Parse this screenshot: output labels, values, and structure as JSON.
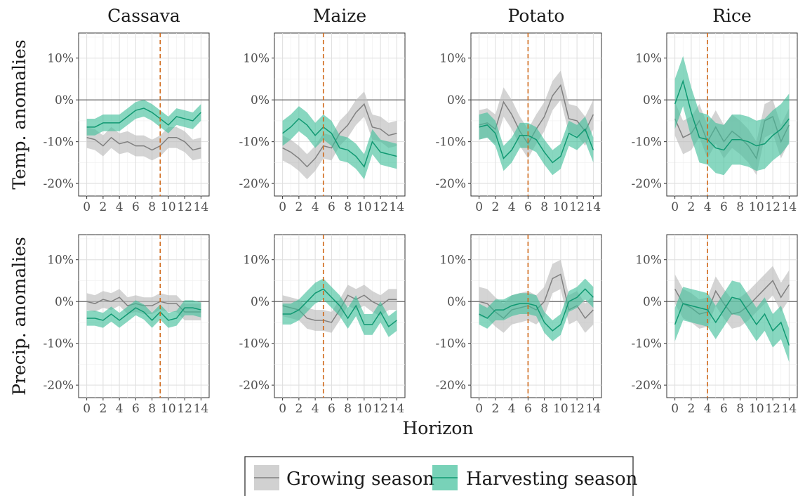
{
  "chart_data": {
    "type": "line",
    "xlabel": "Horizon",
    "x_ticks": [
      0,
      2,
      4,
      6,
      8,
      10,
      12,
      14
    ],
    "xlim": [
      -1,
      15
    ],
    "ylim": [
      -23,
      16
    ],
    "y_ticks": [
      10,
      0,
      -10,
      -20
    ],
    "y_tick_labels": [
      "10%",
      "0%",
      "-10%",
      "-20%"
    ],
    "rows": [
      {
        "label": "Temp. anomalies"
      },
      {
        "label": "Precip. anomalies"
      }
    ],
    "columns": [
      {
        "title": "Cassava",
        "vline": 9
      },
      {
        "title": "Maize",
        "vline": 5
      },
      {
        "title": "Potato",
        "vline": 6
      },
      {
        "title": "Rice",
        "vline": 4
      }
    ],
    "legend": {
      "position": "bottom",
      "entries": [
        {
          "label": "Growing season",
          "line_color": "#808080",
          "fill_color": "#bdbdbd"
        },
        {
          "label": "Harvesting season",
          "line_color": "#109972",
          "fill_color": "#3fbf9a"
        }
      ]
    },
    "panels": [
      {
        "row": 0,
        "col": 0,
        "growing": {
          "y": [
            -9,
            -9.5,
            -11,
            -9,
            -10.5,
            -10,
            -11,
            -11,
            -12,
            -11,
            -9,
            -9,
            -10,
            -12,
            -11.5
          ],
          "band": 2.5
        },
        "harvesting": {
          "y": [
            -6.5,
            -6.5,
            -5.5,
            -5.5,
            -5.5,
            -4,
            -2.5,
            -2,
            -3,
            -4.5,
            -6,
            -4,
            -4.5,
            -5,
            -3
          ],
          "band": 2
        }
      },
      {
        "row": 0,
        "col": 1,
        "growing": {
          "y": [
            -11.5,
            -12.5,
            -14,
            -16,
            -14,
            -11,
            -11.5,
            -8,
            -6,
            -3,
            -1,
            -6.5,
            -7,
            -8.5,
            -8
          ],
          "band": 3
        },
        "harvesting": {
          "y": [
            -8,
            -6.5,
            -4.5,
            -6,
            -8.5,
            -6.5,
            -8,
            -11.5,
            -12,
            -13.5,
            -16,
            -10,
            -12.5,
            -13,
            -13.5
          ],
          "band": 3
        }
      },
      {
        "row": 0,
        "col": 2,
        "growing": {
          "y": [
            -6,
            -5.5,
            -7,
            -0.5,
            -3.5,
            -7.5,
            -10.5,
            -7,
            -4,
            1,
            3.5,
            -4.5,
            -5,
            -7.5,
            -3.5
          ],
          "band": 3.5
        },
        "harvesting": {
          "y": [
            -6.5,
            -6,
            -8,
            -14,
            -12,
            -8.5,
            -8.5,
            -9.5,
            -12.5,
            -15,
            -13.5,
            -8,
            -9,
            -7,
            -12
          ],
          "band": 3
        }
      },
      {
        "row": 0,
        "col": 3,
        "growing": {
          "y": [
            -4.5,
            -9,
            -8,
            -5,
            -10,
            -6.5,
            -10,
            -7.5,
            -9,
            -11,
            -14,
            -5,
            -4,
            -10,
            -6
          ],
          "band": 4
        },
        "harvesting": {
          "y": [
            -1,
            4.5,
            -3,
            -9,
            -9.5,
            -11.5,
            -12,
            -9.5,
            -9.5,
            -10,
            -11,
            -10.5,
            -8.5,
            -7,
            -4.5
          ],
          "band": 6
        }
      },
      {
        "row": 1,
        "col": 0,
        "growing": {
          "y": [
            0,
            -0.5,
            0.5,
            0,
            1,
            -1,
            -0.5,
            -1,
            -1,
            0,
            -0.5,
            -0.5,
            -2.5,
            -2.5,
            -2.5
          ],
          "band": 2
        },
        "harvesting": {
          "y": [
            -4,
            -4,
            -4.5,
            -3,
            -4.5,
            -3,
            -1.5,
            -2.5,
            -4.5,
            -2.5,
            -4.5,
            -4,
            -1.5,
            -1.5,
            -2
          ],
          "band": 1.8
        }
      },
      {
        "row": 1,
        "col": 1,
        "growing": {
          "y": [
            -1,
            -1.5,
            -2,
            -4,
            -4.5,
            -4.5,
            -5,
            -2,
            1.5,
            0.5,
            1.5,
            0,
            -1,
            0.5,
            0.5
          ],
          "band": 2.5
        },
        "harvesting": {
          "y": [
            -3,
            -3,
            -2,
            0,
            2,
            3,
            1,
            -1,
            -4,
            -1,
            -5.5,
            -5.5,
            -2.5,
            -6,
            -4.5
          ],
          "band": 2.5
        }
      },
      {
        "row": 1,
        "col": 2,
        "growing": {
          "y": [
            0,
            -0.5,
            -2.5,
            -4,
            -2,
            -1.5,
            -1,
            -2,
            0,
            5.5,
            6.5,
            -2,
            -1,
            -4,
            -2
          ],
          "band": 3.5
        },
        "harvesting": {
          "y": [
            -3,
            -4,
            -2,
            -2,
            -1,
            -0.5,
            -0.5,
            -1,
            -5,
            -7,
            -5.5,
            0,
            1,
            3,
            1
          ],
          "band": 2.5
        }
      },
      {
        "row": 1,
        "col": 3,
        "growing": {
          "y": [
            3,
            -0.5,
            -1.5,
            -3,
            -2.5,
            2.5,
            -0.5,
            -3,
            -2.5,
            -1,
            1,
            3,
            5,
            1,
            4
          ],
          "band": 3.5
        },
        "harvesting": {
          "y": [
            -5.5,
            -0.5,
            -1,
            -1.5,
            -2,
            -5,
            -2,
            1,
            0.5,
            -2.5,
            -5.5,
            -3,
            -7,
            -5,
            -10.5
          ],
          "band": 4
        }
      }
    ]
  }
}
